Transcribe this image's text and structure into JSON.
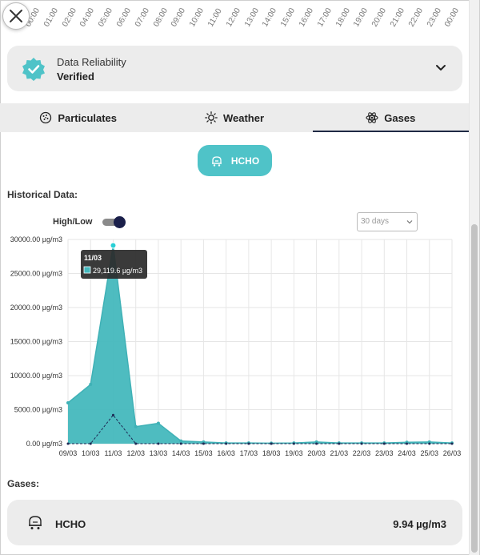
{
  "timeline": {
    "hours": [
      "00:00",
      "01:00",
      "02:00",
      "04:00",
      "05:00",
      "06:00",
      "07:00",
      "08:00",
      "09:00",
      "10:00",
      "11:00",
      "12:00",
      "13:00",
      "14:00",
      "15:00",
      "16:00",
      "17:00",
      "18:00",
      "19:00",
      "20:00",
      "21:00",
      "22:00",
      "23:00",
      "00:00"
    ]
  },
  "reliability": {
    "label": "Data Reliability",
    "value": "Verified"
  },
  "tabs": [
    {
      "label": "Particulates",
      "icon": "particulates-icon"
    },
    {
      "label": "Weather",
      "icon": "sun-icon"
    },
    {
      "label": "Gases",
      "icon": "atom-icon",
      "active": true
    }
  ],
  "selected_gas": {
    "label": "HCHO"
  },
  "historical": {
    "title": "Historical Data:",
    "toggle_label": "High/Low",
    "toggle_on": true,
    "range_select": "30 days"
  },
  "chart_data": {
    "type": "area",
    "categories": [
      "09/03",
      "10/03",
      "11/03",
      "12/03",
      "13/03",
      "14/03",
      "15/03",
      "16/03",
      "17/03",
      "18/03",
      "19/03",
      "20/03",
      "21/03",
      "22/03",
      "23/03",
      "24/03",
      "25/03",
      "26/03"
    ],
    "series": [
      {
        "name": "High",
        "values": [
          6000,
          8700,
          29119.6,
          2500,
          3000,
          400,
          250,
          100,
          100,
          80,
          100,
          250,
          100,
          100,
          100,
          200,
          250,
          100
        ]
      },
      {
        "name": "Low",
        "values": [
          0,
          0,
          4200,
          0,
          0,
          0,
          0,
          0,
          0,
          0,
          0,
          0,
          0,
          0,
          0,
          0,
          0,
          0
        ]
      }
    ],
    "y_ticks": [
      "30000.00 µg/m3",
      "25000.00 µg/m3",
      "20000.00 µg/m3",
      "15000.00 µg/m3",
      "10000.00 µg/m3",
      "5000.00 µg/m3",
      "0.00 µg/m3"
    ],
    "ylim": [
      0,
      30000
    ],
    "tooltip": {
      "date": "11/03",
      "value": "29,119.6 µg/m3"
    },
    "colors": {
      "area": "#44b8bd",
      "line": "#3fb1b6",
      "low_line": "#1e2a55",
      "grid": "#e6e6e6"
    }
  },
  "gases": {
    "title": "Gases:",
    "items": [
      {
        "name": "HCHO",
        "value": "9.94 µg/m3"
      }
    ]
  }
}
